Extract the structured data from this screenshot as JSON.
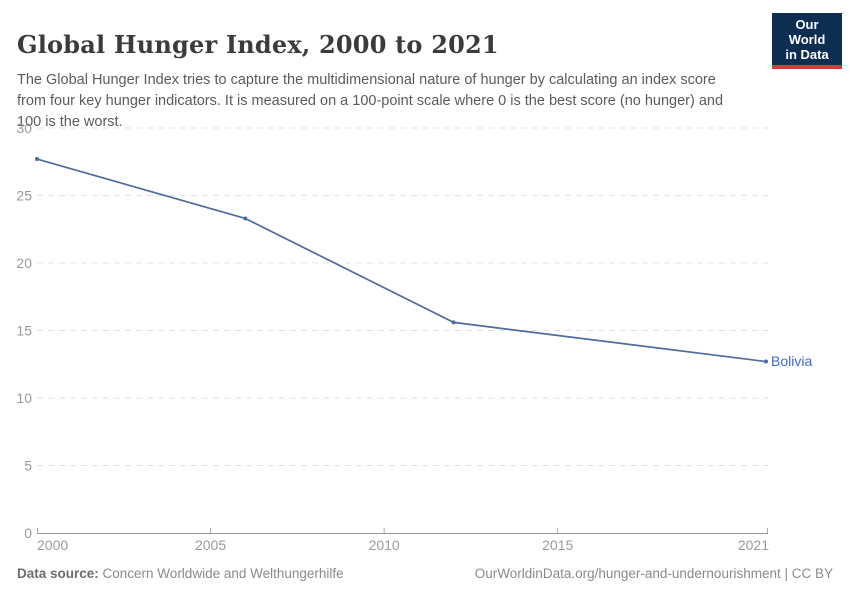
{
  "header": {
    "title": "Global Hunger Index, 2000 to 2021",
    "subtitle": "The Global Hunger Index tries to capture the multidimensional nature of hunger by calculating an index score from four key hunger indicators. It is measured on a 100-point scale where 0 is the best score (no hunger) and 100 is the worst.",
    "logo": {
      "line1": "Our World",
      "line2": "in Data",
      "bg_color": "#0d2d51",
      "accent_color": "#d73c3c"
    }
  },
  "chart_data": {
    "type": "line",
    "title": "Global Hunger Index, 2000 to 2021",
    "xlabel": "",
    "ylabel": "",
    "xlim": [
      2000,
      2021
    ],
    "ylim": [
      0,
      30
    ],
    "x_ticks": [
      2000,
      2005,
      2010,
      2015,
      2021
    ],
    "y_ticks": [
      0,
      5,
      10,
      15,
      20,
      25,
      30
    ],
    "grid": "horizontal-dashed",
    "legend_position": "end-of-line-label",
    "series": [
      {
        "name": "Bolivia",
        "color": "#4c6ba1",
        "label_color": "#3f6db5",
        "x": [
          2000,
          2006,
          2012,
          2021
        ],
        "values": [
          27.7,
          23.3,
          15.6,
          12.7
        ]
      }
    ]
  },
  "footer": {
    "source_label": "Data source:",
    "source_value": " Concern Worldwide and Welthungerhilfe",
    "url": "OurWorldinData.org/hunger-and-undernourishment",
    "license_suffix": " | CC BY"
  }
}
